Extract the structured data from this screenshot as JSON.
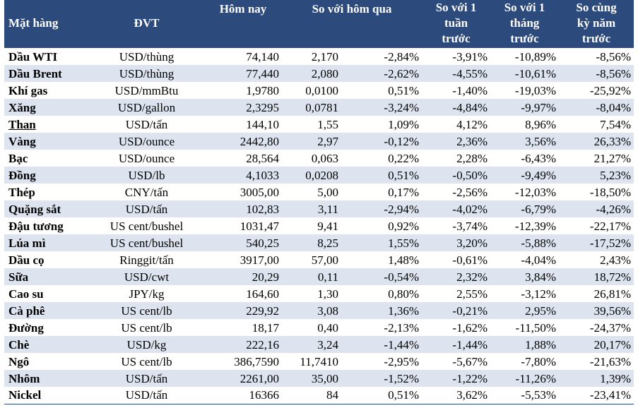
{
  "headers": {
    "name": "Mặt hàng",
    "unit": "ĐVT",
    "today": "Hôm nay",
    "vs_yesterday": "So với hôm qua",
    "vs_week": [
      "So với 1",
      "tuần",
      "trước"
    ],
    "vs_month": [
      "So với 1",
      "tháng",
      "trước"
    ],
    "vs_year": [
      "So cùng",
      "kỳ năm",
      "trước"
    ]
  },
  "rows": [
    {
      "name": "Dầu WTI",
      "unit": "USD/thùng",
      "today": "74,140",
      "chg": "2,170",
      "chg_pct": "-2,84%",
      "week": "-3,91%",
      "month": "-10,89%",
      "year": "-8,56%"
    },
    {
      "name": "Dầu Brent",
      "unit": "USD/thùng",
      "today": "77,440",
      "chg": "2,080",
      "chg_pct": "-2,62%",
      "week": "-4,55%",
      "month": "-10,61%",
      "year": "-8,56%"
    },
    {
      "name": "Khí gas",
      "unit": "USD/mmBtu",
      "today": "1,9780",
      "chg": "0,0100",
      "chg_pct": "0,51%",
      "week": "-1,40%",
      "month": "-19,03%",
      "year": "-25,92%"
    },
    {
      "name": "Xăng",
      "unit": "USD/gallon",
      "today": "2,3295",
      "chg": "0,0781",
      "chg_pct": "-3,24%",
      "week": "-4,84%",
      "month": "-9,97%",
      "year": "-8,04%"
    },
    {
      "name": "Than",
      "unit": "USD/tấn",
      "today": "144,10",
      "chg": "1,55",
      "chg_pct": "1,09%",
      "week": "4,12%",
      "month": "8,96%",
      "year": "7,54%"
    },
    {
      "name": "Vàng",
      "unit": "USD/ounce",
      "today": "2442,80",
      "chg": "2,97",
      "chg_pct": "-0,12%",
      "week": "2,36%",
      "month": "3,56%",
      "year": "26,33%"
    },
    {
      "name": "Bạc",
      "unit": "USD/ounce",
      "today": "28,564",
      "chg": "0,063",
      "chg_pct": "0,22%",
      "week": "2,28%",
      "month": "-6,43%",
      "year": "21,27%"
    },
    {
      "name": "Đồng",
      "unit": "USD/lb",
      "today": "4,1033",
      "chg": "0,0208",
      "chg_pct": "0,51%",
      "week": "-0,50%",
      "month": "-9,49%",
      "year": "5,23%"
    },
    {
      "name": "Thép",
      "unit": "CNY/tấn",
      "today": "3005,00",
      "chg": "5,00",
      "chg_pct": "0,17%",
      "week": "-2,56%",
      "month": "-12,03%",
      "year": "-18,50%"
    },
    {
      "name": "Quặng sắt",
      "unit": "USD/tấn",
      "today": "102,83",
      "chg": "3,11",
      "chg_pct": "-2,94%",
      "week": "-4,02%",
      "month": "-6,79%",
      "year": "-4,26%"
    },
    {
      "name": "Đậu tương",
      "unit": "US cent/bushel",
      "today": "1031,47",
      "chg": "9,41",
      "chg_pct": "0,92%",
      "week": "-3,74%",
      "month": "-12,39%",
      "year": "-22,17%"
    },
    {
      "name": "Lúa mì",
      "unit": "US cent/bushel",
      "today": "540,25",
      "chg": "8,25",
      "chg_pct": "1,55%",
      "week": "3,20%",
      "month": "-5,88%",
      "year": "-17,52%"
    },
    {
      "name": "Dầu cọ",
      "unit": "Ringgit/tấn",
      "today": "3917,00",
      "chg": "57,00",
      "chg_pct": "1,48%",
      "week": "-0,61%",
      "month": "-4,04%",
      "year": "2,43%"
    },
    {
      "name": "Sữa",
      "unit": "USD/cwt",
      "today": "20,29",
      "chg": "0,11",
      "chg_pct": "-0,54%",
      "week": "2,32%",
      "month": "3,84%",
      "year": "18,72%"
    },
    {
      "name": "Cao su",
      "unit": "JPY/kg",
      "today": "164,60",
      "chg": "1,30",
      "chg_pct": "0,80%",
      "week": "2,55%",
      "month": "-3,12%",
      "year": "26,81%"
    },
    {
      "name": "Cà phê",
      "unit": "US cent/lb",
      "today": "229,92",
      "chg": "3,08",
      "chg_pct": "1,36%",
      "week": "-0,21%",
      "month": "2,95%",
      "year": "39,56%"
    },
    {
      "name": "Đường",
      "unit": "US cent/lb",
      "today": "18,17",
      "chg": "0,40",
      "chg_pct": "-2,13%",
      "week": "-1,62%",
      "month": "-11,50%",
      "year": "-24,37%"
    },
    {
      "name": "Chè",
      "unit": "USD/kg",
      "today": "222,16",
      "chg": "3,24",
      "chg_pct": "-1,44%",
      "week": "-1,44%",
      "month": "1,88%",
      "year": "20,17%"
    },
    {
      "name": "Ngô",
      "unit": "US cent/lb",
      "today": "386,7590",
      "chg": "11,7410",
      "chg_pct": "-2,95%",
      "week": "-5,67%",
      "month": "-7,80%",
      "year": "-21,63%"
    },
    {
      "name": "Nhôm",
      "unit": "USD/tấn",
      "today": "2261,00",
      "chg": "35,00",
      "chg_pct": "-1,52%",
      "week": "-1,22%",
      "month": "-11,26%",
      "year": "1,39%"
    },
    {
      "name": "Nickel",
      "unit": "USD/tấn",
      "today": "16366",
      "chg": "84",
      "chg_pct": "0,51%",
      "week": "3,62%",
      "month": "-5,53%",
      "year": "-23,41%"
    }
  ],
  "colors": {
    "header_bg": "#2c4a7c",
    "header_text": "#ffffff",
    "stripe_bg": "#dde4f0"
  }
}
